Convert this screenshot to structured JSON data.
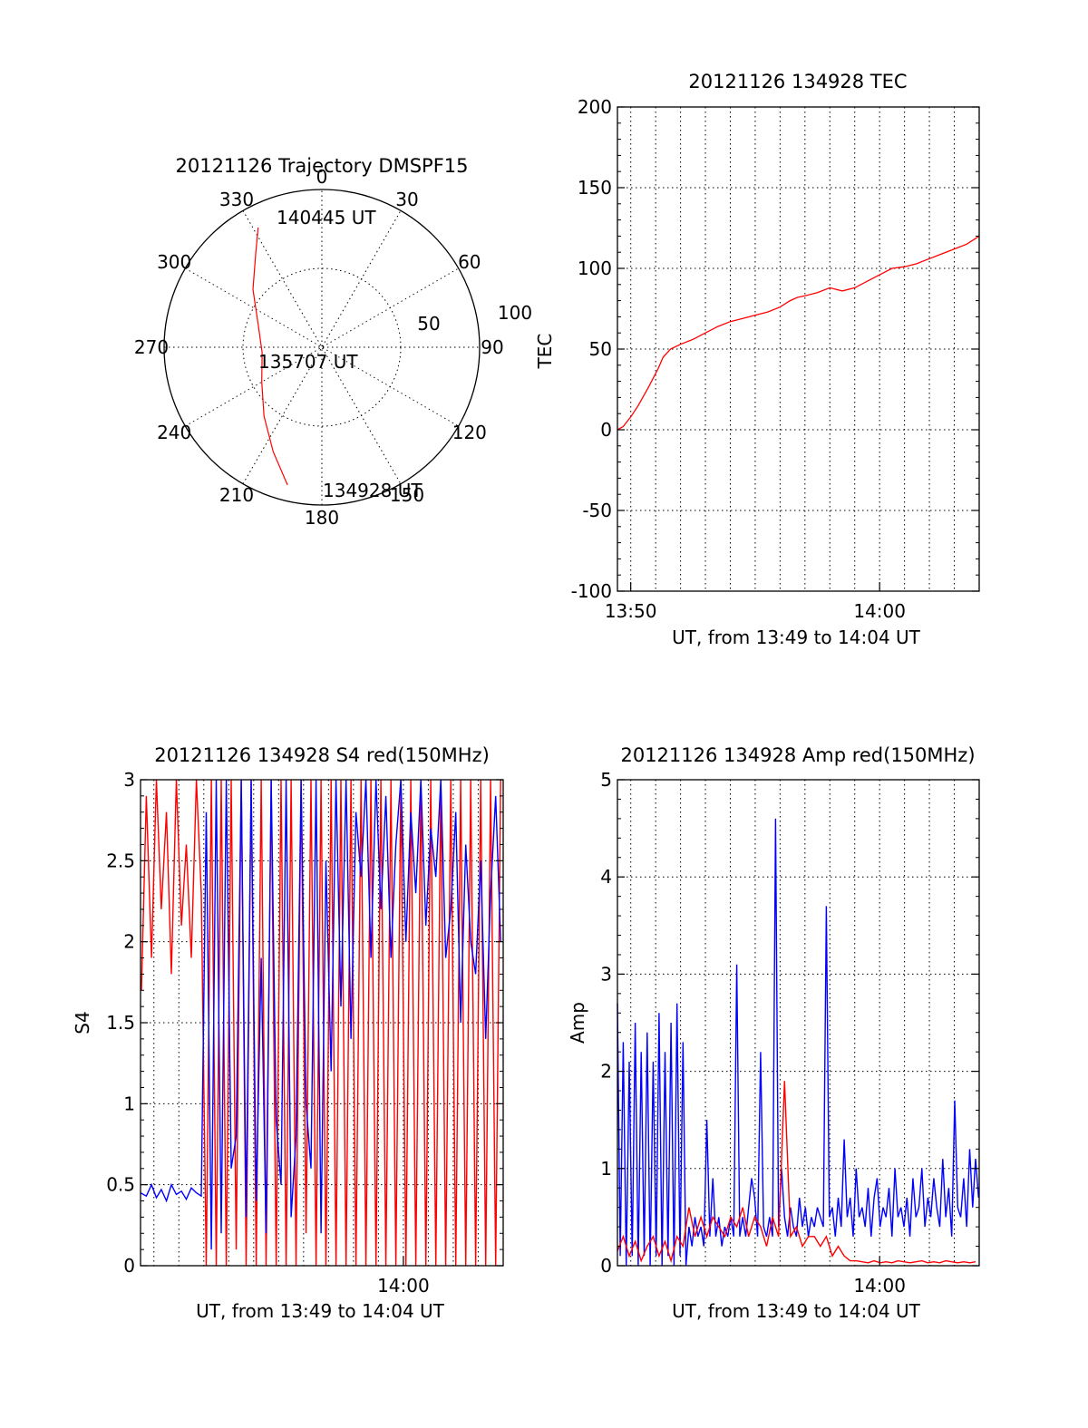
{
  "colors": {
    "red": "#ff0000",
    "blue": "#0000ff",
    "axis": "#000000",
    "background": "#ffffff"
  },
  "chart_data": [
    {
      "id": "trajectory",
      "type": "polar",
      "title": "20121126 Trajectory DMSPF15",
      "angle_labels": [
        "0",
        "30",
        "60",
        "90",
        "120",
        "150",
        "180",
        "210",
        "240",
        "270",
        "300",
        "330"
      ],
      "radial_labels": [
        "50",
        "100"
      ],
      "rlim": [
        0,
        100
      ],
      "grid": true,
      "series": [
        {
          "color": "#ff0000",
          "points_az_r": [
            [
              194,
              90
            ],
            [
              205,
              73
            ],
            [
              220,
              57
            ],
            [
              240,
              44
            ],
            [
              265,
              38
            ],
            [
              290,
              43
            ],
            [
              310,
              57
            ],
            [
              325,
              73
            ],
            [
              332,
              86
            ]
          ]
        }
      ],
      "annotations": [
        "140445 UT",
        "135707 UT",
        "134928 UT"
      ]
    },
    {
      "id": "tec",
      "type": "line",
      "title": "20121126 134928 TEC",
      "xlabel": "UT, from 13:49 to 14:04 UT",
      "ylabel": "TEC",
      "xlim": [
        13.8244,
        14.0667
      ],
      "ylim": [
        -100,
        200
      ],
      "yticks": [
        "200",
        "150",
        "100",
        "50",
        "0",
        "-50",
        "-100"
      ],
      "xticks": [
        {
          "value": 13.8333,
          "label": "13:50"
        },
        {
          "value": 14.0,
          "label": "14:00"
        }
      ],
      "grid": true,
      "series": [
        {
          "color": "#ff0000",
          "x": [
            13.8244,
            13.8283,
            13.8333,
            13.8383,
            13.845,
            13.8517,
            13.855,
            13.86,
            13.8667,
            13.875,
            13.8833,
            13.8917,
            13.9,
            13.9083,
            13.9167,
            13.925,
            13.9333,
            13.94,
            13.945,
            13.95,
            13.9583,
            13.9667,
            13.975,
            13.9833,
            13.9917,
            14.0,
            14.0083,
            14.0167,
            14.025,
            14.0333,
            14.0417,
            14.05,
            14.0583,
            14.0667
          ],
          "y": [
            0,
            2,
            8,
            15,
            26,
            38,
            45,
            50,
            53,
            56,
            60,
            64,
            67,
            69,
            71,
            73,
            76,
            80,
            82,
            83,
            85,
            88,
            86,
            88,
            92,
            96,
            100,
            101,
            103,
            106,
            109,
            112,
            115,
            120
          ]
        }
      ]
    },
    {
      "id": "s4",
      "type": "line",
      "title": "20121126 134928 S4 red(150MHz)",
      "xlabel": "UT, from 13:49 to 14:04 UT",
      "ylabel": "S4",
      "xlim": [
        13.8244,
        14.0667
      ],
      "ylim": [
        0,
        3
      ],
      "yticks": [
        "3",
        "2.5",
        "2",
        "1.5",
        "1",
        "0.5",
        "0"
      ],
      "xticks": [
        {
          "value": 14.0,
          "label": "14:00"
        }
      ],
      "grid": true,
      "series": [
        {
          "color": "#ff0000",
          "x": [
            13.825,
            13.8283,
            13.8317,
            13.835,
            13.8383,
            13.8417,
            13.845,
            13.8483,
            13.8517,
            13.855,
            13.8583,
            13.8617,
            13.865,
            13.8683,
            13.8717,
            13.875,
            13.8783,
            13.8817,
            13.885,
            13.8883,
            13.8917,
            13.895,
            13.8983,
            13.9017,
            13.905,
            13.9083,
            13.9117,
            13.915,
            13.9183,
            13.9217,
            13.925,
            13.9283,
            13.9317,
            13.935,
            13.9383,
            13.9417,
            13.945,
            13.9483,
            13.9517,
            13.955,
            13.9583,
            13.9617,
            13.965,
            13.9683,
            13.9717,
            13.975,
            13.9783,
            13.9817,
            13.985,
            13.9883,
            13.9917,
            13.995,
            13.9983,
            14.0017,
            14.005,
            14.0083,
            14.0117,
            14.015,
            14.0183,
            14.0217,
            14.025,
            14.0283,
            14.0317,
            14.035,
            14.0383,
            14.0417,
            14.045,
            14.0483,
            14.0517,
            14.055,
            14.0583,
            14.0617,
            14.065
          ],
          "y": [
            1.7,
            2.9,
            1.9,
            3.0,
            2.2,
            2.8,
            1.8,
            3.0,
            2.1,
            2.6,
            1.9,
            3.0,
            2.3,
            0.0,
            3.0,
            0.0,
            3.0,
            0.0,
            3.0,
            0.1,
            3.0,
            0.0,
            3.0,
            0.0,
            3.0,
            0.0,
            3.0,
            0.0,
            3.0,
            0.0,
            3.0,
            0.0,
            3.0,
            0.2,
            3.0,
            0.0,
            3.0,
            0.0,
            3.0,
            0.0,
            3.0,
            0.0,
            3.0,
            0.0,
            3.0,
            0.0,
            3.0,
            0.0,
            3.0,
            0.0,
            3.0,
            0.0,
            3.0,
            0.0,
            3.0,
            0.0,
            3.0,
            0.0,
            3.0,
            0.0,
            3.0,
            0.0,
            3.0,
            0.0,
            3.0,
            0.0,
            3.0,
            0.0,
            3.0,
            0.0,
            3.0,
            0.0,
            3.0
          ]
        },
        {
          "color": "#0000ff",
          "x": [
            13.8244,
            13.8283,
            13.8317,
            13.835,
            13.8383,
            13.8417,
            13.845,
            13.8483,
            13.8517,
            13.855,
            13.8583,
            13.8617,
            13.865,
            13.8683,
            13.8717,
            13.875,
            13.8783,
            13.8817,
            13.885,
            13.8883,
            13.8917,
            13.895,
            13.8983,
            13.9017,
            13.905,
            13.9083,
            13.9117,
            13.915,
            13.9183,
            13.9217,
            13.925,
            13.9283,
            13.9317,
            13.935,
            13.9383,
            13.9417,
            13.945,
            13.9483,
            13.9517,
            13.955,
            13.9583,
            13.9617,
            13.965,
            13.9683,
            13.9717,
            13.975,
            13.9783,
            13.9817,
            13.985,
            13.9883,
            13.9917,
            13.995,
            13.9983,
            14.0017,
            14.005,
            14.0083,
            14.0117,
            14.015,
            14.0183,
            14.0217,
            14.025,
            14.0283,
            14.0317,
            14.035,
            14.0383,
            14.0417,
            14.045,
            14.0483,
            14.0517,
            14.055,
            14.0583,
            14.0617,
            14.065
          ],
          "y": [
            0.45,
            0.43,
            0.5,
            0.42,
            0.47,
            0.4,
            0.5,
            0.44,
            0.46,
            0.41,
            0.48,
            0.45,
            0.43,
            2.8,
            0.1,
            3.0,
            0.2,
            3.0,
            0.6,
            0.8,
            3.0,
            0.3,
            3.0,
            0.4,
            1.9,
            0.2,
            3.0,
            0.9,
            0.5,
            3.0,
            0.3,
            0.8,
            3.0,
            1.0,
            0.6,
            3.0,
            0.2,
            2.5,
            1.2,
            3.0,
            1.6,
            3.0,
            1.4,
            2.8,
            2.4,
            3.0,
            1.9,
            3.0,
            2.2,
            2.9,
            1.9,
            2.6,
            3.0,
            2.0,
            2.8,
            2.3,
            3.0,
            2.1,
            2.7,
            2.4,
            3.0,
            1.9,
            2.2,
            2.8,
            1.5,
            2.6,
            2.0,
            1.8,
            2.5,
            1.4,
            2.3,
            2.9,
            2.0
          ]
        }
      ]
    },
    {
      "id": "amp",
      "type": "line",
      "title": "20121126 134928 Amp red(150MHz)",
      "xlabel": "UT, from 13:49 to 14:04 UT",
      "ylabel": "Amp",
      "xlim": [
        13.8244,
        14.0667
      ],
      "ylim": [
        0,
        5
      ],
      "yticks": [
        "5",
        "4",
        "3",
        "2",
        "1",
        "0"
      ],
      "xticks": [
        {
          "value": 14.0,
          "label": "14:00"
        }
      ],
      "grid": true,
      "series": [
        {
          "color": "#0000ff",
          "x": [
            13.8244,
            13.8263,
            13.8283,
            13.8303,
            13.8323,
            13.8343,
            13.8363,
            13.8383,
            13.8403,
            13.8423,
            13.8443,
            13.8463,
            13.8483,
            13.8503,
            13.8523,
            13.8543,
            13.8563,
            13.8583,
            13.8603,
            13.8623,
            13.8643,
            13.8663,
            13.8683,
            13.8703,
            13.8723,
            13.8743,
            13.8763,
            13.8783,
            13.8803,
            13.8823,
            13.8843,
            13.8863,
            13.8883,
            13.8903,
            13.8923,
            13.8943,
            13.8963,
            13.8983,
            13.9003,
            13.9023,
            13.9043,
            13.9063,
            13.9083,
            13.9103,
            13.9123,
            13.9143,
            13.9163,
            13.9183,
            13.9203,
            13.9223,
            13.9243,
            13.9263,
            13.9283,
            13.9303,
            13.9323,
            13.9343,
            13.9363,
            13.9383,
            13.9403,
            13.9423,
            13.9443,
            13.9463,
            13.9483,
            13.9503,
            13.9523,
            13.9543,
            13.9563,
            13.9583,
            13.9603,
            13.9623,
            13.9643,
            13.9663,
            13.9683,
            13.9703,
            13.9723,
            13.9743,
            13.9763,
            13.9783,
            13.9803,
            13.9823,
            13.9843,
            13.9863,
            13.9883,
            13.9903,
            13.9923,
            13.9943,
            13.9963,
            13.9983,
            14.0003,
            14.0023,
            14.0043,
            14.0063,
            14.0083,
            14.0103,
            14.0123,
            14.0143,
            14.0163,
            14.0183,
            14.0203,
            14.0223,
            14.0243,
            14.0263,
            14.0283,
            14.0303,
            14.0323,
            14.0343,
            14.0363,
            14.0383,
            14.0403,
            14.0423,
            14.0443,
            14.0463,
            14.0483,
            14.0503,
            14.0523,
            14.0543,
            14.0563,
            14.0583,
            14.0603,
            14.0623,
            14.0643,
            14.0663
          ],
          "y": [
            2.7,
            0.1,
            2.3,
            0.0,
            2.1,
            0.1,
            2.5,
            0.0,
            2.2,
            0.1,
            2.4,
            0.0,
            2.1,
            0.1,
            2.6,
            0.0,
            2.2,
            0.1,
            2.5,
            0.0,
            2.7,
            0.1,
            2.3,
            0.0,
            0.4,
            0.2,
            0.5,
            0.3,
            0.4,
            0.2,
            1.5,
            0.3,
            0.9,
            0.3,
            0.5,
            0.2,
            0.4,
            0.3,
            0.5,
            0.3,
            3.1,
            0.3,
            0.5,
            0.3,
            0.6,
            0.9,
            0.7,
            0.3,
            2.2,
            0.4,
            0.3,
            0.5,
            0.3,
            4.6,
            0.4,
            1.0,
            0.5,
            0.3,
            0.6,
            0.4,
            0.3,
            0.7,
            0.4,
            0.6,
            0.3,
            0.5,
            0.4,
            0.6,
            0.5,
            0.4,
            3.7,
            0.5,
            0.6,
            0.3,
            0.7,
            0.4,
            1.3,
            0.5,
            0.7,
            0.3,
            1.0,
            0.5,
            0.6,
            0.4,
            0.8,
            0.3,
            0.7,
            0.9,
            0.4,
            0.6,
            0.5,
            0.8,
            0.3,
            1.0,
            0.5,
            0.6,
            0.4,
            0.7,
            0.3,
            0.9,
            0.5,
            0.6,
            1.0,
            0.4,
            0.7,
            0.5,
            0.9,
            0.6,
            0.4,
            1.1,
            0.5,
            0.8,
            0.3,
            1.7,
            0.6,
            0.5,
            0.9,
            0.4,
            1.2,
            0.6,
            1.1,
            0.7
          ]
        },
        {
          "color": "#ff0000",
          "x": [
            13.8244,
            13.8283,
            13.8323,
            13.8363,
            13.8403,
            13.8443,
            13.8483,
            13.8523,
            13.8563,
            13.8603,
            13.8643,
            13.8683,
            13.8723,
            13.8763,
            13.8803,
            13.8843,
            13.8883,
            13.8923,
            13.8963,
            13.9003,
            13.9043,
            13.9083,
            13.9123,
            13.9163,
            13.9203,
            13.9243,
            13.9283,
            13.9323,
            13.9363,
            13.9403,
            13.9443,
            13.9483,
            13.9523,
            13.9563,
            13.9603,
            13.9643,
            13.9683,
            13.9723,
            13.9763,
            13.9803,
            13.9843,
            13.9883,
            13.9923,
            13.9963,
            14.0003,
            14.0043,
            14.0083,
            14.0123,
            14.0163,
            14.0203,
            14.0243,
            14.0283,
            14.0323,
            14.0363,
            14.0403,
            14.0443,
            14.0483,
            14.0523,
            14.0563,
            14.0603,
            14.0643
          ],
          "y": [
            0.15,
            0.3,
            0.1,
            0.25,
            0.05,
            0.2,
            0.3,
            0.1,
            0.25,
            0.05,
            0.3,
            0.2,
            0.6,
            0.3,
            0.5,
            0.3,
            0.5,
            0.4,
            0.3,
            0.5,
            0.4,
            0.6,
            0.3,
            0.5,
            0.4,
            0.2,
            0.5,
            0.3,
            1.9,
            0.3,
            0.4,
            0.2,
            0.3,
            0.3,
            0.2,
            0.3,
            0.1,
            0.2,
            0.1,
            0.05,
            0.05,
            0.04,
            0.03,
            0.05,
            0.03,
            0.04,
            0.03,
            0.05,
            0.04,
            0.03,
            0.04,
            0.05,
            0.03,
            0.04,
            0.03,
            0.05,
            0.04,
            0.03,
            0.04,
            0.03,
            0.04
          ]
        }
      ]
    }
  ]
}
